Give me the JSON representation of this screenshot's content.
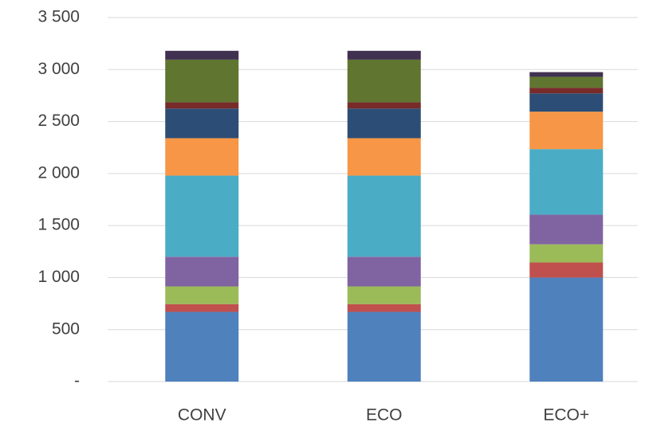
{
  "chart_data": {
    "type": "stacked_bar",
    "categories": [
      "CONV",
      "ECO",
      "ECO+"
    ],
    "series": [
      {
        "color": "#4f81bd",
        "values": [
          670,
          670,
          1000
        ]
      },
      {
        "color": "#c0504d",
        "values": [
          75,
          75,
          145
        ]
      },
      {
        "color": "#9bbb59",
        "values": [
          170,
          170,
          175
        ]
      },
      {
        "color": "#8064a2",
        "values": [
          285,
          285,
          285
        ]
      },
      {
        "color": "#4bacc6",
        "values": [
          780,
          780,
          630
        ]
      },
      {
        "color": "#f79646",
        "values": [
          360,
          360,
          360
        ]
      },
      {
        "color": "#2c4d75",
        "values": [
          285,
          285,
          175
        ]
      },
      {
        "color": "#772c2a",
        "values": [
          60,
          60,
          55
        ]
      },
      {
        "color": "#5f7530",
        "values": [
          410,
          410,
          105
        ]
      },
      {
        "color": "#403151",
        "values": [
          85,
          85,
          45
        ]
      }
    ],
    "ylim": [
      0,
      3500
    ],
    "yticks": [
      {
        "value": 0,
        "label": "-"
      },
      500,
      {
        "value": 1000,
        "label": "1 000"
      },
      {
        "value": 1500,
        "label": "1 500"
      },
      {
        "value": 2000,
        "label": "2 000"
      },
      {
        "value": 2500,
        "label": "2 500"
      },
      {
        "value": 3000,
        "label": "3 000"
      },
      {
        "value": 3500,
        "label": "3 500"
      }
    ],
    "grid": true
  }
}
